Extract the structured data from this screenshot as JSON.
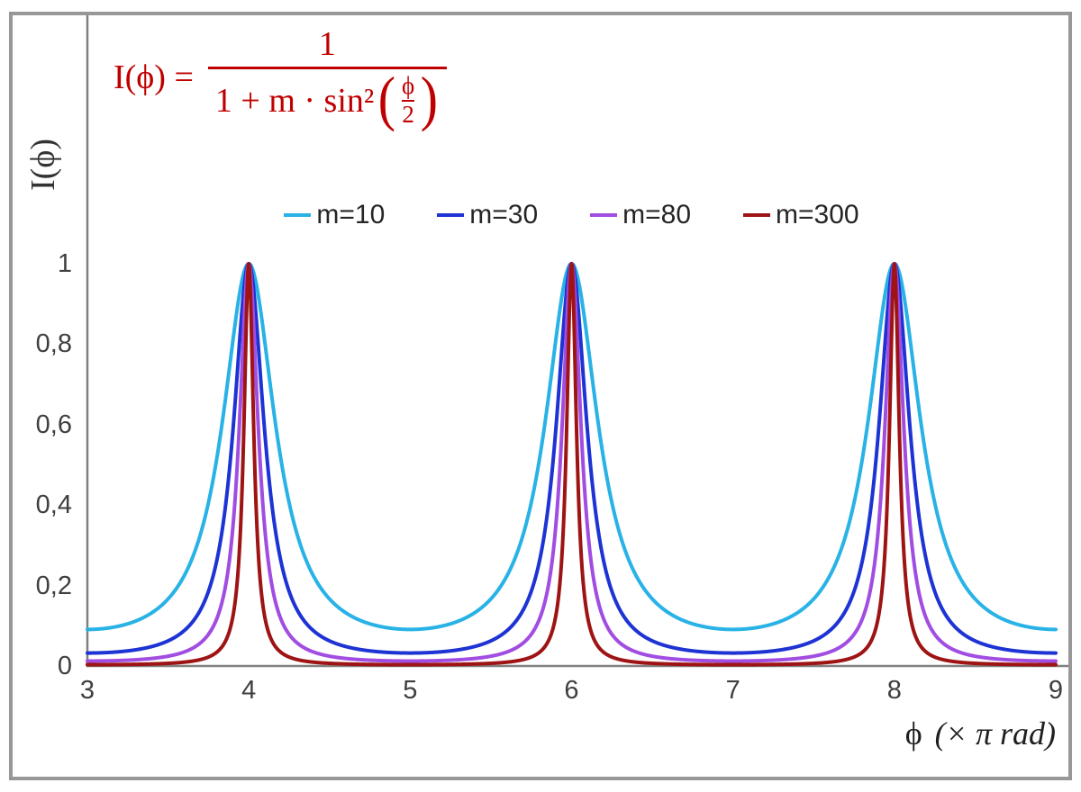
{
  "frame": {
    "border_color": "#979797",
    "background": "#ffffff"
  },
  "formula": {
    "lhs": "I(ϕ) =",
    "numerator": "1",
    "denominator_prefix": "1 + m · sin²",
    "open_paren": "(",
    "inner_numerator": "ϕ",
    "inner_denominator": "2",
    "close_paren": ")",
    "color": "#c00000"
  },
  "y_axis_label": "I(ϕ)",
  "x_axis_label": {
    "symbol": "ϕ",
    "unit": "(× π rad)"
  },
  "chart_data": {
    "type": "line",
    "function": "I(ϕ) = 1 / (1 + m · sin²(ϕ/2))",
    "x_axis": {
      "label": "ϕ (× π rad)",
      "min": 3,
      "max": 9,
      "ticks": [
        {
          "v": 3,
          "label": "3"
        },
        {
          "v": 4,
          "label": "4"
        },
        {
          "v": 5,
          "label": "5"
        },
        {
          "v": 6,
          "label": "6"
        },
        {
          "v": 7,
          "label": "7"
        },
        {
          "v": 8,
          "label": "8"
        },
        {
          "v": 9,
          "label": "9"
        }
      ]
    },
    "y_axis": {
      "label": "I(ϕ)",
      "min": 0,
      "max": 1,
      "ticks": [
        {
          "v": 0,
          "label": "0"
        },
        {
          "v": 0.2,
          "label": "0,2"
        },
        {
          "v": 0.4,
          "label": "0,4"
        },
        {
          "v": 0.6,
          "label": "0,6"
        },
        {
          "v": 0.8,
          "label": "0,8"
        },
        {
          "v": 1,
          "label": "1"
        }
      ]
    },
    "axis_color": "#808080",
    "grid": false,
    "legend_position": "top-center",
    "peaks_at_x": [
      4,
      6,
      8
    ],
    "peak_value": 1,
    "series": [
      {
        "name": "m=10",
        "m": 10,
        "color": "#29b2e6",
        "min_value": 0.091
      },
      {
        "name": "m=30",
        "m": 30,
        "color": "#1d33d4",
        "min_value": 0.032
      },
      {
        "name": "m=80",
        "m": 80,
        "color": "#a24de2",
        "min_value": 0.012
      },
      {
        "name": "m=300",
        "m": 300,
        "color": "#9e1313",
        "min_value": 0.003
      }
    ]
  }
}
